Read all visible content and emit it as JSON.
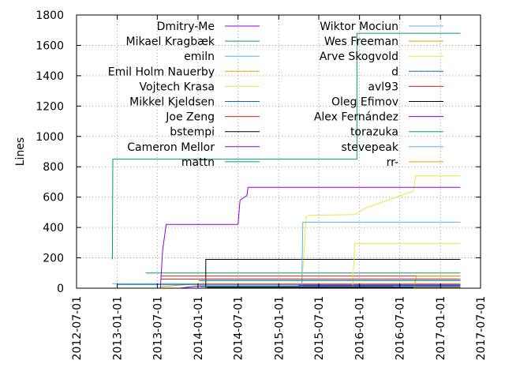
{
  "chart_data": {
    "type": "line",
    "title": "",
    "xlabel": "",
    "ylabel": "Lines",
    "ylim": [
      0,
      1800
    ],
    "xlim": [
      "2012-07-01",
      "2017-07-01"
    ],
    "y_ticks": [
      0,
      200,
      400,
      600,
      800,
      1000,
      1200,
      1400,
      1600,
      1800
    ],
    "x_ticks": [
      "2012-07-01",
      "2013-01-01",
      "2013-07-01",
      "2014-01-01",
      "2014-07-01",
      "2015-01-01",
      "2015-07-01",
      "2016-01-01",
      "2016-07-01",
      "2017-01-01",
      "2017-07-01"
    ],
    "grid": true,
    "legend_position": "top (two columns)",
    "series": [
      {
        "name": "Dmitry-Me",
        "color": "#9400d3",
        "points": [
          [
            "2013-10-15",
            0
          ],
          [
            "2013-11-20",
            8
          ],
          [
            "2014-01-10",
            15
          ],
          [
            "2017-04-01",
            15
          ]
        ]
      },
      {
        "name": "Mikael Kragbæk",
        "color": "#009e73",
        "points": [
          [
            "2013-05-10",
            100
          ],
          [
            "2017-04-01",
            100
          ]
        ]
      },
      {
        "name": "emiln",
        "color": "#56b4e9",
        "points": [
          [
            "2012-12-10",
            30
          ],
          [
            "2017-04-01",
            30
          ]
        ]
      },
      {
        "name": "Emil Holm Nauerby",
        "color": "#e69f00",
        "points": [
          [
            "2013-07-15",
            10
          ],
          [
            "2014-01-05",
            30
          ],
          [
            "2017-04-01",
            30
          ]
        ]
      },
      {
        "name": "Vojtech Krasa",
        "color": "#f0e442",
        "points": [
          [
            "2015-04-15",
            0
          ],
          [
            "2015-05-05",
            470
          ],
          [
            "2015-05-15",
            480
          ],
          [
            "2015-12-10",
            485
          ],
          [
            "2016-02-01",
            530
          ],
          [
            "2016-09-01",
            640
          ],
          [
            "2016-09-10",
            740
          ],
          [
            "2017-04-01",
            740
          ]
        ]
      },
      {
        "name": "Mikkel Kjeldsen",
        "color": "#0072b2",
        "points": [
          [
            "2013-01-01",
            25
          ],
          [
            "2017-04-01",
            25
          ]
        ]
      },
      {
        "name": "Joe Zeng",
        "color": "#e51e10",
        "points": [
          [
            "2013-07-15",
            80
          ],
          [
            "2017-04-01",
            80
          ]
        ]
      },
      {
        "name": "bstempi",
        "color": "#000000",
        "points": [
          [
            "2014-02-05",
            0
          ],
          [
            "2014-02-05",
            190
          ],
          [
            "2017-04-01",
            190
          ]
        ]
      },
      {
        "name": "Cameron Mellor",
        "color": "#9400d3",
        "points": [
          [
            "2013-07-15",
            0
          ],
          [
            "2013-07-25",
            250
          ],
          [
            "2013-08-10",
            420
          ],
          [
            "2014-07-01",
            420
          ],
          [
            "2014-07-10",
            580
          ],
          [
            "2014-08-10",
            610
          ],
          [
            "2014-08-15",
            665
          ],
          [
            "2017-04-01",
            665
          ]
        ]
      },
      {
        "name": "mattn",
        "color": "#009e73",
        "points": [
          [
            "2012-12-10",
            190
          ],
          [
            "2012-12-12",
            850
          ],
          [
            "2015-12-20",
            850
          ],
          [
            "2015-12-20",
            1680
          ],
          [
            "2017-04-01",
            1680
          ]
        ]
      },
      {
        "name": "Wiktor Mociun",
        "color": "#56b4e9",
        "points": [
          [
            "2015-04-15",
            0
          ],
          [
            "2015-04-20",
            435
          ],
          [
            "2017-04-01",
            435
          ]
        ]
      },
      {
        "name": "Wes Freeman",
        "color": "#e69f00",
        "points": [
          [
            "2016-09-01",
            0
          ],
          [
            "2016-09-15",
            80
          ],
          [
            "2017-04-01",
            80
          ]
        ]
      },
      {
        "name": "Arve Skogvold",
        "color": "#f0e442",
        "points": [
          [
            "2015-12-01",
            0
          ],
          [
            "2015-12-10",
            295
          ],
          [
            "2017-04-01",
            295
          ]
        ]
      },
      {
        "name": "d",
        "color": "#0072b2",
        "points": [
          [
            "2014-01-05",
            50
          ],
          [
            "2017-04-01",
            50
          ]
        ]
      },
      {
        "name": "avl93",
        "color": "#e51e10",
        "points": [
          [
            "2013-07-15",
            60
          ],
          [
            "2017-04-01",
            60
          ]
        ]
      },
      {
        "name": "Oleg Efimov",
        "color": "#000000",
        "points": [
          [
            "2014-02-10",
            5
          ],
          [
            "2017-04-01",
            5
          ]
        ]
      },
      {
        "name": "Alex Fernández",
        "color": "#9400d3",
        "points": [
          [
            "2015-04-01",
            20
          ],
          [
            "2017-04-01",
            20
          ]
        ]
      },
      {
        "name": "torazuka",
        "color": "#009e73",
        "points": [
          [
            "2014-01-10",
            10
          ],
          [
            "2017-04-01",
            10
          ]
        ]
      },
      {
        "name": "stevepeak",
        "color": "#56b4e9",
        "points": [
          [
            "2016-06-01",
            12
          ],
          [
            "2017-04-01",
            12
          ]
        ]
      },
      {
        "name": "rr-",
        "color": "#e69f00",
        "points": [
          [
            "2016-09-01",
            3
          ],
          [
            "2017-04-01",
            3
          ]
        ]
      }
    ]
  }
}
